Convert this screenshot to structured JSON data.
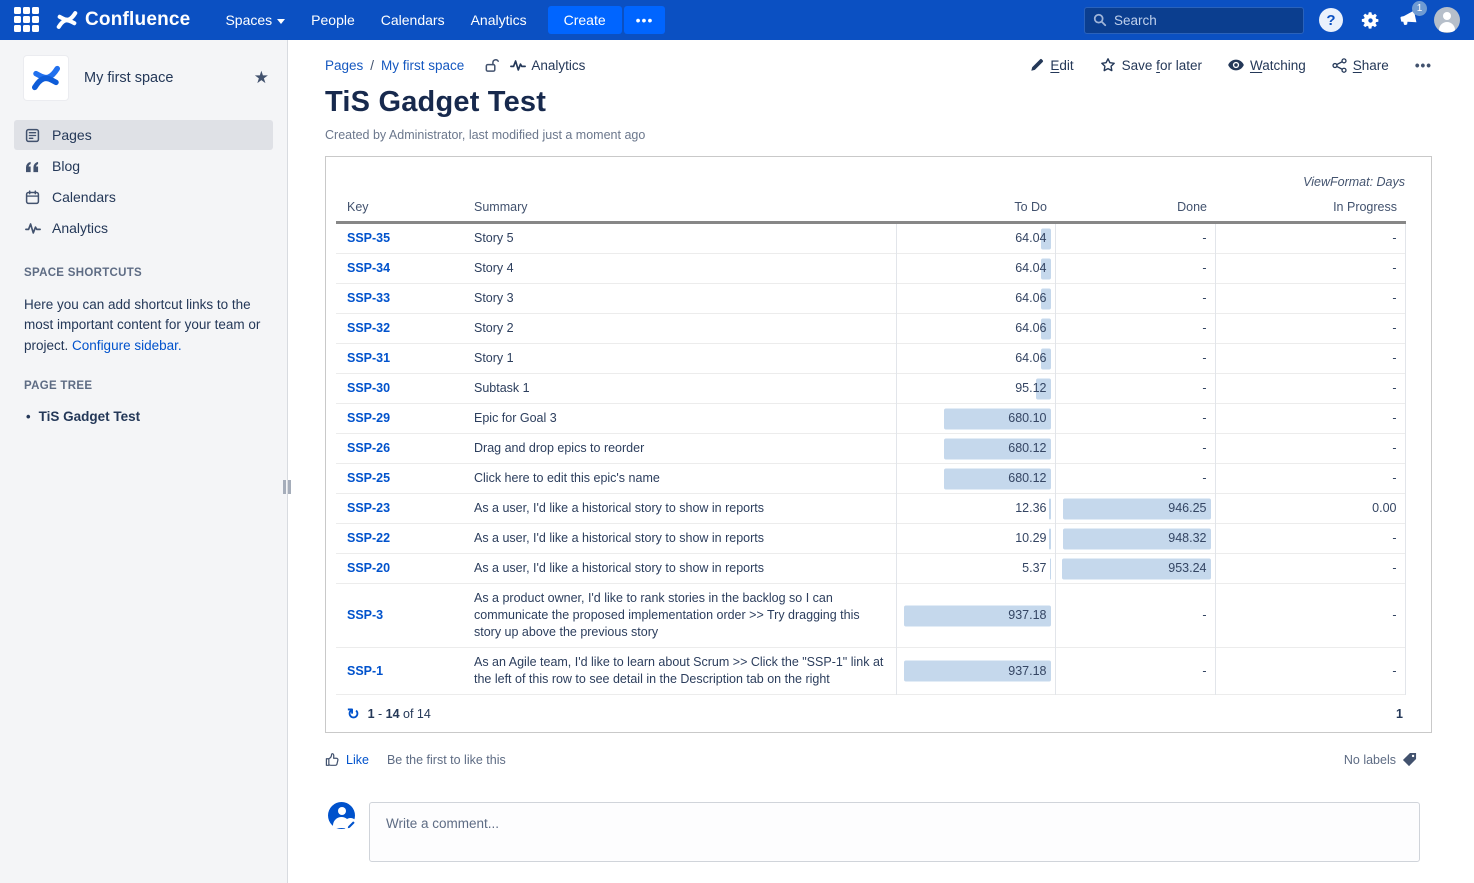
{
  "colors": {
    "nav_bg": "#0b50c2",
    "create_button": "#0065ff",
    "link": "#0052cc",
    "bar_fill": "#c5d8ec"
  },
  "topnav": {
    "brand": "Confluence",
    "menu": [
      {
        "label": "Spaces"
      },
      {
        "label": "People"
      },
      {
        "label": "Calendars"
      },
      {
        "label": "Analytics"
      }
    ],
    "create_label": "Create",
    "more_label": "•••",
    "search": {
      "placeholder": "Search"
    },
    "notification_count": "1"
  },
  "sidebar": {
    "space_name": "My first space",
    "items": [
      {
        "label": "Pages"
      },
      {
        "label": "Blog"
      },
      {
        "label": "Calendars"
      },
      {
        "label": "Analytics"
      }
    ],
    "shortcuts_heading": "SPACE SHORTCUTS",
    "shortcuts_text": "Here you can add shortcut links to the most important content for your team or project.",
    "configure_link": "Configure sidebar.",
    "page_tree_heading": "PAGE TREE",
    "page_tree_bullet": "•",
    "page_tree_item": "TiS Gadget Test"
  },
  "breadcrumb": {
    "links": [
      "Pages",
      "My first space"
    ],
    "separator": "/",
    "current": "Analytics"
  },
  "actions": {
    "edit": [
      "",
      "E",
      "dit"
    ],
    "save": [
      "Save ",
      "f",
      "or later"
    ],
    "watching": [
      "",
      "W",
      "atching"
    ],
    "share": [
      "",
      "S",
      "hare"
    ],
    "more": "•••"
  },
  "page": {
    "title": "TiS Gadget Test",
    "byline": "Created by Administrator, last modified just a moment ago"
  },
  "chart_data": {
    "type": "table",
    "view_format": "ViewFormat: Days",
    "columns": [
      "Key",
      "Summary",
      "To Do",
      "Done",
      "In Progress"
    ],
    "rows": [
      {
        "key": "SSP-35",
        "summary": "Story 5",
        "to_do": "64.04",
        "done": "-",
        "in_progress": "-"
      },
      {
        "key": "SSP-34",
        "summary": "Story 4",
        "to_do": "64.04",
        "done": "-",
        "in_progress": "-"
      },
      {
        "key": "SSP-33",
        "summary": "Story 3",
        "to_do": "64.06",
        "done": "-",
        "in_progress": "-"
      },
      {
        "key": "SSP-32",
        "summary": "Story 2",
        "to_do": "64.06",
        "done": "-",
        "in_progress": "-"
      },
      {
        "key": "SSP-31",
        "summary": "Story 1",
        "to_do": "64.06",
        "done": "-",
        "in_progress": "-"
      },
      {
        "key": "SSP-30",
        "summary": "Subtask 1",
        "to_do": "95.12",
        "done": "-",
        "in_progress": "-"
      },
      {
        "key": "SSP-29",
        "summary": "Epic for Goal 3",
        "to_do": "680.10",
        "done": "-",
        "in_progress": "-"
      },
      {
        "key": "SSP-26",
        "summary": "Drag and drop epics to reorder",
        "to_do": "680.12",
        "done": "-",
        "in_progress": "-"
      },
      {
        "key": "SSP-25",
        "summary": "Click here to edit this epic's name",
        "to_do": "680.12",
        "done": "-",
        "in_progress": "-"
      },
      {
        "key": "SSP-23",
        "summary": "As a user, I'd like a historical story to show in reports",
        "to_do": "12.36",
        "done": "946.25",
        "in_progress": "0.00"
      },
      {
        "key": "SSP-22",
        "summary": "As a user, I'd like a historical story to show in reports",
        "to_do": "10.29",
        "done": "948.32",
        "in_progress": "-"
      },
      {
        "key": "SSP-20",
        "summary": "As a user, I'd like a historical story to show in reports",
        "to_do": "5.37",
        "done": "953.24",
        "in_progress": "-"
      },
      {
        "key": "SSP-3",
        "summary": "As a product owner, I'd like to rank stories in the backlog so I can communicate the proposed implementation order >> Try dragging this story up above the previous story",
        "to_do": "937.18",
        "done": "-",
        "in_progress": "-"
      },
      {
        "key": "SSP-1",
        "summary": "As an Agile team, I'd like to learn about Scrum >> Click the \"SSP-1\" link at the left of this row to see detail in the Description tab on the right",
        "to_do": "937.18",
        "done": "-",
        "in_progress": "-"
      }
    ],
    "pagination": {
      "start": "1",
      "sep": " - ",
      "end": "14",
      "suffix": " of 14"
    },
    "current_page": "1"
  },
  "social": {
    "like_label": "Like",
    "like_hint": "Be the first to like this",
    "labels_text": "No labels"
  },
  "comment": {
    "placeholder": "Write a comment..."
  }
}
